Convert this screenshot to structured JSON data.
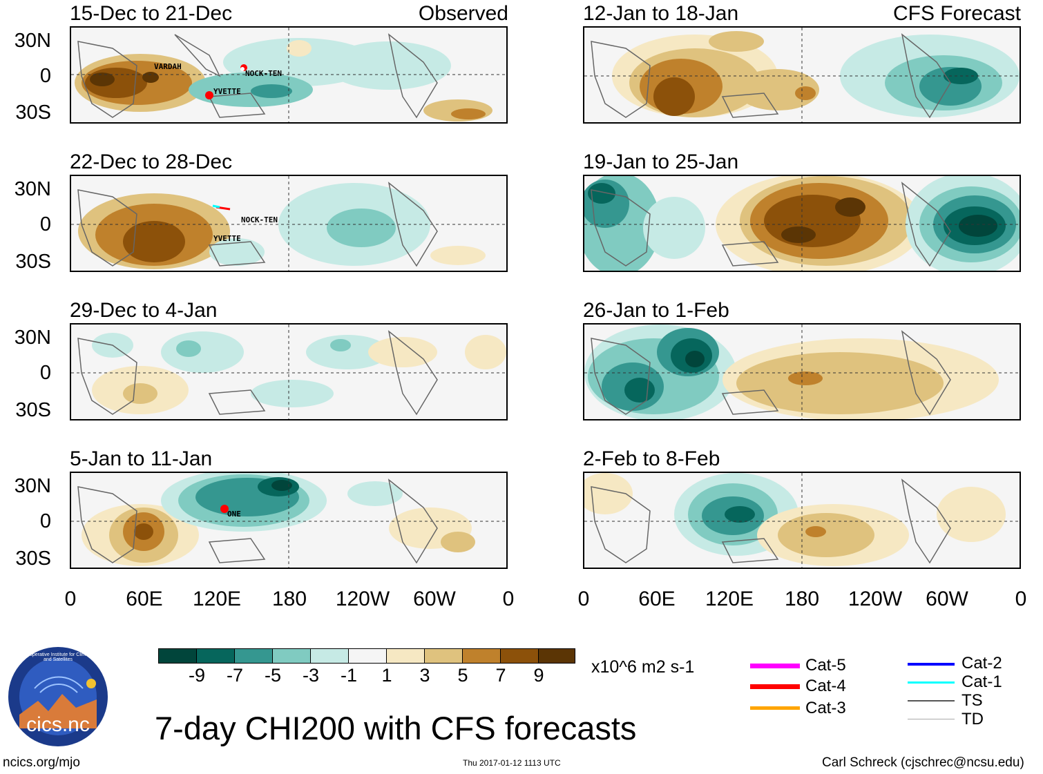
{
  "panels": [
    {
      "title": "15-Dec to 21-Dec",
      "label": "Observed",
      "storms": [
        "VARDAH",
        "NOCK-TEN",
        "YVETTE"
      ]
    },
    {
      "title": "22-Dec to 28-Dec",
      "label": "",
      "storms": [
        "NOCK-TEN",
        "YVETTE"
      ]
    },
    {
      "title": "29-Dec to 4-Jan",
      "label": "",
      "storms": []
    },
    {
      "title": "5-Jan to 11-Jan",
      "label": "",
      "storms": [
        "ONE"
      ]
    },
    {
      "title": "12-Jan to 18-Jan",
      "label": "CFS Forecast",
      "storms": []
    },
    {
      "title": "19-Jan to 25-Jan",
      "label": "",
      "storms": []
    },
    {
      "title": "26-Jan to 1-Feb",
      "label": "",
      "storms": []
    },
    {
      "title": "2-Feb to 8-Feb",
      "label": "",
      "storms": []
    }
  ],
  "axes": {
    "lat_labels": [
      "30N",
      "0",
      "30S"
    ],
    "lon_labels": [
      "0",
      "60E",
      "120E",
      "180",
      "120W",
      "60W",
      "0"
    ]
  },
  "colorbar": {
    "labels": [
      "-9",
      "-7",
      "-5",
      "-3",
      "-1",
      "1",
      "3",
      "5",
      "7",
      "9"
    ],
    "colors": [
      "#01453b",
      "#06665c",
      "#359790",
      "#80cbc1",
      "#c6eae5",
      "#f5f5f5",
      "#f6e8c3",
      "#dfc27e",
      "#bf812c",
      "#8c510a",
      "#5b3505"
    ],
    "units": "x10^6 m2 s-1"
  },
  "legend": [
    {
      "label": "Cat-5",
      "color": "#ff00ff"
    },
    {
      "label": "Cat-4",
      "color": "#ff0000"
    },
    {
      "label": "Cat-3",
      "color": "#ffa500"
    },
    {
      "label": "Cat-2",
      "color": "#0000ff"
    },
    {
      "label": "Cat-1",
      "color": "#00ffff"
    },
    {
      "label": "TS",
      "color": "#555555"
    },
    {
      "label": "TD",
      "color": "#aaaaaa"
    }
  ],
  "title": "7-day CHI200 with CFS forecasts",
  "logo_text": "cics.nc",
  "logo_ring_text": "Cooperative Institute for Climate and Satellites",
  "footer": {
    "left": "ncics.org/mjo",
    "center": "Thu 2017-01-12 1113 UTC",
    "right": "Carl Schreck (cjschrec@ncsu.edu)"
  }
}
